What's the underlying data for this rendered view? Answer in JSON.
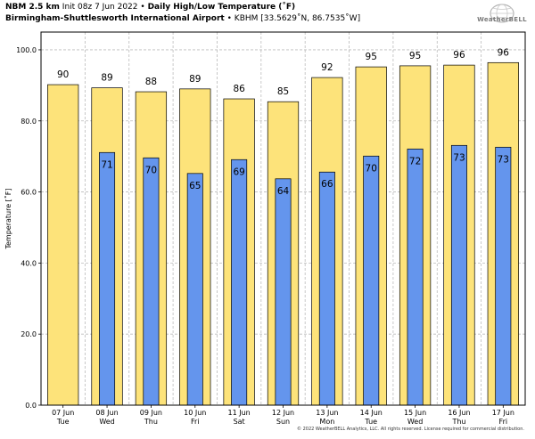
{
  "header": {
    "model": "NBM 2.5 km",
    "init": "Init 08z 7 Jun 2022",
    "bullet": "•",
    "product": "Daily High/Low Temperature (˚F)",
    "station_name": "Birmingham-Shuttlesworth International Airport",
    "station_id_coords": "KBHM [33.5629˚N, 86.7535˚W]"
  },
  "logo": {
    "text": "WeatherBELL"
  },
  "footer": "© 2022 WeatherBELL Analytics, LLC. All rights reserved. License required for commercial distribution.",
  "colors": {
    "high": "#fde37a",
    "low": "#6495ed",
    "grid": "#bbbbbb"
  },
  "chart_data": {
    "type": "bar",
    "ylabel": "Temperature [˚F]",
    "ylim": [
      0,
      105
    ],
    "yticks": [
      0,
      20,
      40,
      60,
      80,
      100
    ],
    "ytick_labels": [
      "0.0",
      "20.0",
      "40.0",
      "60.0",
      "80.0",
      "100.0"
    ],
    "grid": true,
    "categories": [
      {
        "date": "07 Jun",
        "day": "Tue"
      },
      {
        "date": "08 Jun",
        "day": "Wed"
      },
      {
        "date": "09 Jun",
        "day": "Thu"
      },
      {
        "date": "10 Jun",
        "day": "Fri"
      },
      {
        "date": "11 Jun",
        "day": "Sat"
      },
      {
        "date": "12 Jun",
        "day": "Sun"
      },
      {
        "date": "13 Jun",
        "day": "Mon"
      },
      {
        "date": "14 Jun",
        "day": "Tue"
      },
      {
        "date": "15 Jun",
        "day": "Wed"
      },
      {
        "date": "16 Jun",
        "day": "Thu"
      },
      {
        "date": "17 Jun",
        "day": "Fri"
      }
    ],
    "series": [
      {
        "values": [
          90,
          89,
          88,
          89,
          86,
          85,
          92,
          95,
          95,
          96,
          96
        ],
        "bar_values": [
          90.2,
          89.3,
          88.2,
          89.0,
          86.2,
          85.4,
          92.2,
          95.2,
          95.5,
          95.7,
          96.4
        ]
      },
      {
        "values": [
          null,
          71,
          70,
          65,
          69,
          64,
          66,
          70,
          72,
          73,
          73
        ],
        "bar_values": [
          null,
          71.1,
          69.6,
          65.2,
          69.1,
          63.7,
          65.6,
          70.1,
          72.1,
          73.1,
          72.6
        ]
      }
    ]
  }
}
